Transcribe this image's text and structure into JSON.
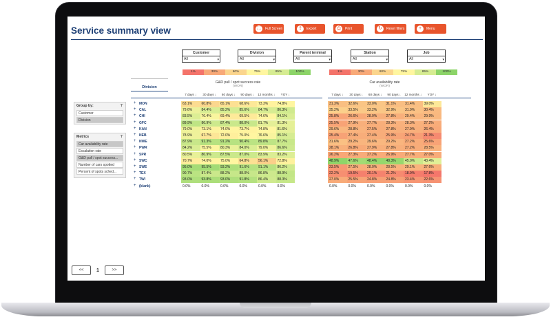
{
  "title": "Service summary view",
  "toolbar": [
    {
      "label": "Full Screen",
      "icon": "fullscreen-icon",
      "glyph": "⛶"
    },
    {
      "label": "Export",
      "icon": "export-icon",
      "glyph": "⇪"
    },
    {
      "label": "Print",
      "icon": "print-icon",
      "glyph": "⎙"
    },
    {
      "label": "Reset filters",
      "icon": "reset-icon",
      "glyph": "↻"
    },
    {
      "label": "Menu",
      "icon": "menu-icon",
      "glyph": "+"
    }
  ],
  "filters": [
    {
      "label": "Customer",
      "value": "All"
    },
    {
      "label": "Division",
      "value": "All"
    },
    {
      "label": "Parent terminal",
      "value": "All"
    },
    {
      "label": "Station",
      "value": "All"
    },
    {
      "label": "Job",
      "value": "All"
    }
  ],
  "legend": [
    {
      "label": "1%",
      "color": "#f4736a"
    },
    {
      "label": "30%",
      "color": "#f8a978"
    },
    {
      "label": "60%",
      "color": "#fbd58d"
    },
    {
      "label": "75%",
      "color": "#fff6a0"
    },
    {
      "label": "85%",
      "color": "#d6ec92"
    },
    {
      "label": "100%",
      "color": "#8cd468"
    }
  ],
  "division_header": "Division",
  "groups": [
    {
      "title": "G&D pull / spot success rate",
      "sub": "(WOR)"
    },
    {
      "title": "Car availability rate",
      "sub": "(WOR)"
    }
  ],
  "columns": [
    "7 days",
    "30 days",
    "60 days",
    "90 days",
    "12 months",
    "YOY"
  ],
  "rows": [
    {
      "name": "MON",
      "a": [
        "63.1%",
        "60.8%",
        "65.1%",
        "68.6%",
        "73.3%",
        "74.8%"
      ],
      "b": [
        "31.3%",
        "32.6%",
        "33.0%",
        "31.1%",
        "31.4%",
        "39.0%"
      ]
    },
    {
      "name": "CAL",
      "a": [
        "79.6%",
        "84.4%",
        "85.2%",
        "85.6%",
        "84.7%",
        "86.3%"
      ],
      "b": [
        "35.2%",
        "33.5%",
        "33.2%",
        "32.9%",
        "31.9%",
        "30.4%"
      ]
    },
    {
      "name": "CHI",
      "a": [
        "83.5%",
        "76.4%",
        "69.4%",
        "69.5%",
        "74.6%",
        "84.1%"
      ],
      "b": [
        "25.8%",
        "26.6%",
        "28.0%",
        "27.8%",
        "29.4%",
        "29.9%"
      ]
    },
    {
      "name": "GFC",
      "a": [
        "89.9%",
        "86.9%",
        "87.4%",
        "88.0%",
        "81.7%",
        "81.3%"
      ],
      "b": [
        "25.5%",
        "27.9%",
        "27.7%",
        "28.3%",
        "28.3%",
        "27.2%"
      ]
    },
    {
      "name": "KAN",
      "a": [
        "79.0%",
        "73.1%",
        "74.0%",
        "73.7%",
        "74.8%",
        "81.6%"
      ],
      "b": [
        "29.6%",
        "28.8%",
        "27.5%",
        "27.8%",
        "27.9%",
        "26.4%"
      ]
    },
    {
      "name": "NEB",
      "a": [
        "78.9%",
        "67.7%",
        "72.0%",
        "75.0%",
        "76.6%",
        "85.1%"
      ],
      "b": [
        "25.4%",
        "27.4%",
        "27.4%",
        "25.9%",
        "24.7%",
        "21.3%"
      ]
    },
    {
      "name": "NWE",
      "a": [
        "87.9%",
        "91.3%",
        "91.2%",
        "90.4%",
        "89.8%",
        "87.7%"
      ],
      "b": [
        "31.6%",
        "29.2%",
        "29.6%",
        "29.2%",
        "27.2%",
        "25.6%"
      ]
    },
    {
      "name": "PWR",
      "a": [
        "84.2%",
        "75.5%",
        "80.3%",
        "84.0%",
        "79.0%",
        "86.6%"
      ],
      "b": [
        "28.1%",
        "26.8%",
        "27.9%",
        "27.8%",
        "27.2%",
        "28.5%"
      ]
    },
    {
      "name": "SPR",
      "a": [
        "80.5%",
        "86.9%",
        "87.5%",
        "87.0%",
        "83.9%",
        "83.2%"
      ],
      "b": [
        "26.2%",
        "27.3%",
        "27.2%",
        "26.9%",
        "27.7%",
        "27.0%"
      ]
    },
    {
      "name": "SWC",
      "a": [
        "70.7%",
        "74.0%",
        "75.0%",
        "64.8%",
        "56.1%",
        "72.8%"
      ],
      "b": [
        "48.9%",
        "47.6%",
        "48.4%",
        "48.3%",
        "45.0%",
        "43.4%"
      ]
    },
    {
      "name": "SWE",
      "a": [
        "95.0%",
        "95.5%",
        "93.2%",
        "91.6%",
        "91.1%",
        "86.2%"
      ],
      "b": [
        "23.5%",
        "27.5%",
        "28.0%",
        "28.5%",
        "29.1%",
        "27.6%"
      ]
    },
    {
      "name": "TEX",
      "a": [
        "90.7%",
        "87.4%",
        "88.2%",
        "88.0%",
        "86.8%",
        "88.9%"
      ],
      "b": [
        "22.2%",
        "19.5%",
        "20.1%",
        "21.2%",
        "18.9%",
        "17.8%"
      ]
    },
    {
      "name": "TWI",
      "a": [
        "93.0%",
        "93.8%",
        "93.0%",
        "91.8%",
        "86.4%",
        "88.3%"
      ],
      "b": [
        "27.0%",
        "25.5%",
        "24.8%",
        "24.8%",
        "23.4%",
        "22.6%"
      ]
    },
    {
      "name": "(blank)",
      "a": [
        "0.0%",
        "0.0%",
        "0.0%",
        "0.0%",
        "0.0%",
        "0.0%"
      ],
      "b": [
        "0.0%",
        "0.0%",
        "0.0%",
        "0.0%",
        "0.0%",
        "0.0%"
      ]
    }
  ],
  "group_by": {
    "title": "Group by:",
    "items": [
      {
        "label": "Customer",
        "selected": false
      },
      {
        "label": "Division",
        "selected": true
      }
    ]
  },
  "metrics": {
    "title": "Metrics",
    "items": [
      {
        "label": "Car availability rate",
        "selected": true
      },
      {
        "label": "Escalation rate",
        "selected": false
      },
      {
        "label": "G&D pull / spot success...",
        "selected": true
      },
      {
        "label": "Number of cars spotted",
        "selected": false
      },
      {
        "label": "Percent of spots sched...",
        "selected": false
      }
    ]
  },
  "pager": {
    "prev": "<<",
    "page": "1",
    "next": ">>"
  }
}
